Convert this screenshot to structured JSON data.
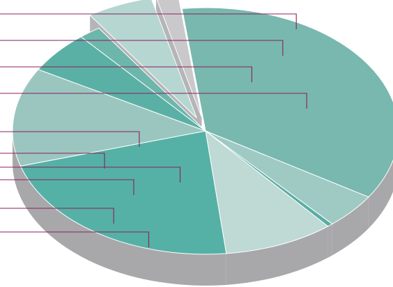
{
  "chart_data": {
    "type": "pie",
    "style": "3d-exploded",
    "title": "",
    "legend": "none",
    "data_labels": "none",
    "series": [
      {
        "values": [
          39,
          5,
          0.5,
          10,
          24,
          14,
          6,
          2,
          6,
          2
        ],
        "colors": [
          "#78b8ae",
          "#9fcac4",
          "#5aada3",
          "#bfd9d5",
          "#55b1a6",
          "#9ac6bf",
          "#5bb0a5",
          "#6db6ab",
          "#b5d6d1",
          "#c9c9cb"
        ],
        "exploded": [
          false,
          false,
          false,
          false,
          false,
          false,
          false,
          false,
          true,
          true
        ]
      }
    ],
    "leader_line_color": "#8a1f5b",
    "side_color": "#a8a8aa"
  }
}
